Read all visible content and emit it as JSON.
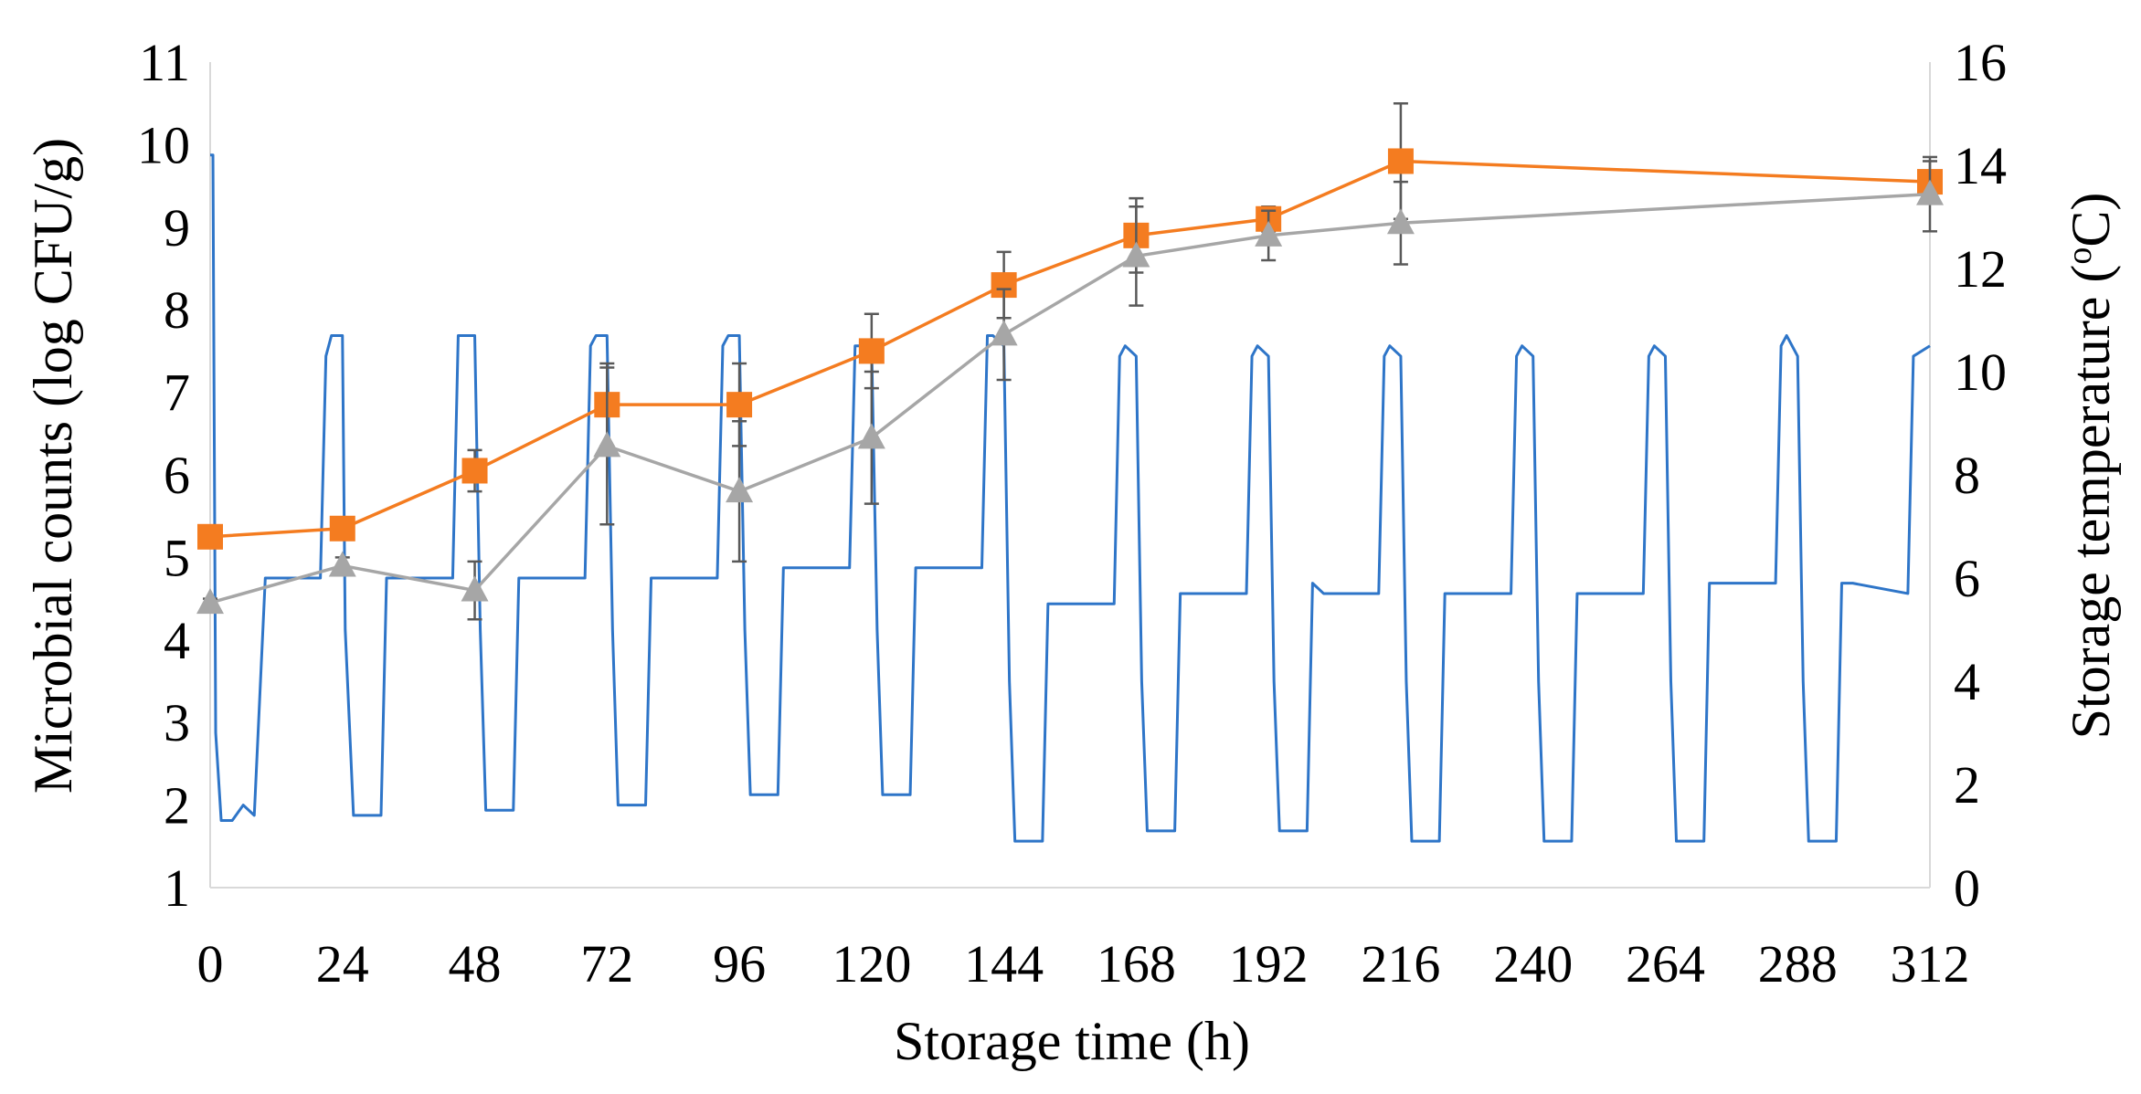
{
  "chart_data": {
    "type": "line",
    "title": "",
    "xlabel": "Storage time (h)",
    "ylabel": "Microbial counts (log CFU/g)",
    "y2label": "Storage temperature (ºC)",
    "y2label_parts": {
      "prefix": "Storage temperature (",
      "superscript": "o",
      "suffix": "C)"
    },
    "xlim": [
      0,
      312
    ],
    "ylim": [
      1,
      11
    ],
    "y2lim": [
      0,
      16
    ],
    "xticks": [
      0,
      24,
      48,
      72,
      96,
      120,
      144,
      168,
      192,
      216,
      240,
      264,
      288,
      312
    ],
    "yticks": [
      1,
      2,
      3,
      4,
      5,
      6,
      7,
      8,
      9,
      10,
      11
    ],
    "y2ticks": [
      0,
      2,
      4,
      6,
      8,
      10,
      12,
      14,
      16
    ],
    "grid": false,
    "legend": "none",
    "series": [
      {
        "name": "Microbial count (orange, squares)",
        "axis": "left",
        "color": "#f47c20",
        "marker": "square",
        "x": [
          0,
          24,
          48,
          72,
          96,
          120,
          144,
          168,
          192,
          216,
          312
        ],
        "values": [
          5.25,
          5.35,
          6.05,
          6.85,
          6.85,
          7.5,
          8.3,
          8.9,
          9.1,
          9.8,
          9.55
        ],
        "errors": [
          0.05,
          0.1,
          0.25,
          0.5,
          0.5,
          0.45,
          0.4,
          0.45,
          0.15,
          0.7,
          0.25
        ]
      },
      {
        "name": "Microbial count (grey, triangles)",
        "axis": "left",
        "color": "#a6a6a6",
        "marker": "triangle",
        "x": [
          0,
          24,
          48,
          72,
          96,
          120,
          144,
          168,
          192,
          216,
          312
        ],
        "values": [
          4.45,
          4.9,
          4.6,
          6.35,
          5.8,
          6.45,
          7.7,
          8.65,
          8.9,
          9.05,
          9.4
        ],
        "errors": [
          0.05,
          0.1,
          0.35,
          0.95,
          0.85,
          0.8,
          0.55,
          0.6,
          0.3,
          0.5,
          0.45
        ]
      },
      {
        "name": "Storage temperature",
        "axis": "right",
        "color": "#2e75c8",
        "marker": "none",
        "x": [
          0,
          0.5,
          1,
          2,
          4,
          6,
          8,
          10,
          20,
          21,
          22,
          24,
          24.5,
          26,
          31,
          32,
          34,
          44,
          45,
          46,
          48,
          49,
          50,
          55,
          56,
          58,
          68,
          69,
          70,
          72,
          73,
          74,
          79,
          80,
          82,
          92,
          93,
          94,
          96,
          97,
          98,
          103,
          104,
          106,
          116,
          117,
          118,
          120,
          121,
          122,
          127,
          128,
          130,
          140,
          141,
          142,
          144,
          145,
          146,
          151,
          152,
          154,
          164,
          165,
          166,
          168,
          169,
          170,
          175,
          176,
          178,
          188,
          189,
          190,
          192,
          193,
          194,
          199,
          200,
          202,
          212,
          213,
          214,
          216,
          217,
          218,
          223,
          224,
          226,
          236,
          237,
          238,
          240,
          241,
          242,
          247,
          248,
          250,
          260,
          261,
          262,
          264,
          265,
          266,
          271,
          272,
          274,
          284,
          285,
          286,
          288,
          289,
          290,
          295,
          296,
          298,
          308,
          309,
          312
        ],
        "values": [
          14.2,
          14.2,
          3,
          1.3,
          1.3,
          1.6,
          1.4,
          6,
          6,
          10.3,
          10.7,
          10.7,
          5,
          1.4,
          1.4,
          6,
          6,
          6,
          10.7,
          10.7,
          10.7,
          5,
          1.5,
          1.5,
          6,
          6,
          6,
          10.5,
          10.7,
          10.7,
          5,
          1.6,
          1.6,
          6,
          6,
          6,
          10.5,
          10.7,
          10.7,
          5,
          1.8,
          1.8,
          6.2,
          6.2,
          6.2,
          10.5,
          10.5,
          10.5,
          5,
          1.8,
          1.8,
          6.2,
          6.2,
          6.2,
          10.7,
          10.7,
          10.5,
          4,
          0.9,
          0.9,
          5.5,
          5.5,
          5.5,
          10.3,
          10.5,
          10.3,
          4,
          1.1,
          1.1,
          5.7,
          5.7,
          5.7,
          10.3,
          10.5,
          10.3,
          4,
          1.1,
          1.1,
          5.9,
          5.7,
          5.7,
          10.3,
          10.5,
          10.3,
          4,
          0.9,
          0.9,
          5.7,
          5.7,
          5.7,
          10.3,
          10.5,
          10.3,
          4,
          0.9,
          0.9,
          5.7,
          5.7,
          5.7,
          10.3,
          10.5,
          10.3,
          4,
          0.9,
          0.9,
          5.9,
          5.9,
          5.9,
          10.5,
          10.7,
          10.3,
          4,
          0.9,
          0.9,
          5.9,
          5.9,
          5.7,
          10.3,
          10.5
        ]
      }
    ]
  }
}
